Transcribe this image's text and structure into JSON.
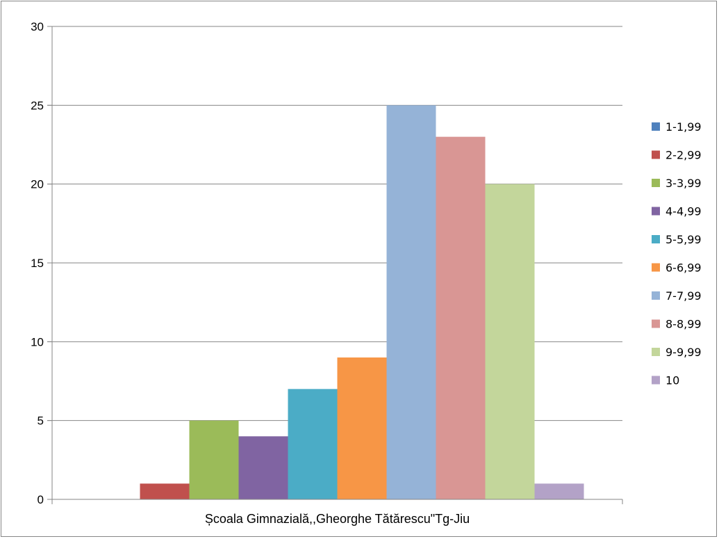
{
  "chart_data": {
    "type": "bar",
    "categories": [
      "Școala Gimnazială,,Gheorghe Tătărescu\"Tg-Jiu"
    ],
    "series": [
      {
        "name": "1-1,99",
        "values": [
          0
        ],
        "color": "#4F81BD"
      },
      {
        "name": "2-2,99",
        "values": [
          1
        ],
        "color": "#C0504D"
      },
      {
        "name": "3-3,99",
        "values": [
          5
        ],
        "color": "#9BBB59"
      },
      {
        "name": "4-4,99",
        "values": [
          4
        ],
        "color": "#8064A2"
      },
      {
        "name": "5-5,99",
        "values": [
          7
        ],
        "color": "#4BACC6"
      },
      {
        "name": "6-6,99",
        "values": [
          9
        ],
        "color": "#F79646"
      },
      {
        "name": "7-7,99",
        "values": [
          25
        ],
        "color": "#95B3D7"
      },
      {
        "name": "8-8,99",
        "values": [
          23
        ],
        "color": "#D99694"
      },
      {
        "name": "9-9,99",
        "values": [
          20
        ],
        "color": "#C3D69B"
      },
      {
        "name": "10",
        "values": [
          1
        ],
        "color": "#B3A2C7"
      }
    ],
    "yticks": [
      "0",
      "5",
      "10",
      "15",
      "20",
      "25",
      "30"
    ],
    "ylim": [
      0,
      30
    ],
    "grid": true,
    "legend": "right",
    "title": "",
    "xlabel": "",
    "ylabel": ""
  }
}
